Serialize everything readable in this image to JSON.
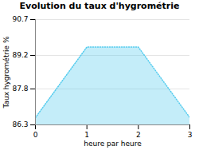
{
  "chart_data": {
    "type": "area",
    "title": "Evolution du taux d'hygrométrie",
    "xlabel": "heure par heure",
    "ylabel": "Taux hygrométrie %",
    "x": [
      0,
      1,
      2,
      3
    ],
    "values": [
      86.6,
      89.55,
      89.55,
      86.6
    ],
    "color": "#55ccee",
    "line_style": "dotted",
    "xlim": [
      0,
      3
    ],
    "ylim": [
      86.3,
      90.7
    ],
    "xticks": [
      0,
      1,
      2,
      3
    ],
    "yticks": [
      86.3,
      87.8,
      89.2,
      90.7
    ],
    "grid": true
  }
}
